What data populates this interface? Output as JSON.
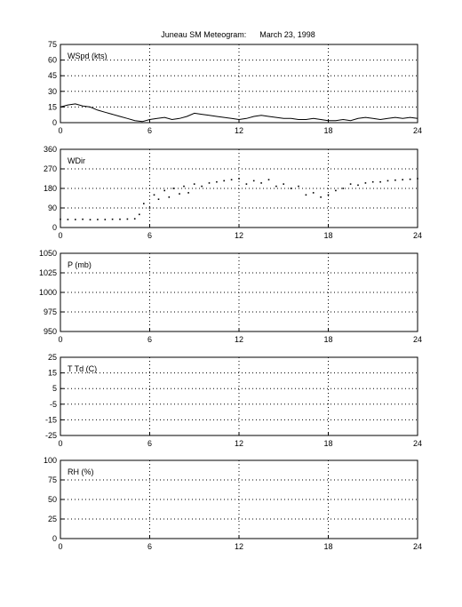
{
  "title": "Juneau SM Meteogram:      March 23, 1998",
  "chart_data": [
    {
      "type": "line",
      "label": "WSpd (kts)",
      "ylim": [
        0,
        75
      ],
      "yticks": [
        0,
        15,
        30,
        45,
        60,
        75
      ],
      "xlim": [
        0,
        24
      ],
      "xticks": [
        0,
        6,
        12,
        18,
        24
      ],
      "grid": true,
      "series": [
        {
          "x": [
            0,
            0.5,
            1,
            1.5,
            2,
            2.5,
            3,
            3.5,
            4,
            4.5,
            5,
            5.5,
            6,
            6.5,
            7,
            7.5,
            8,
            8.5,
            9,
            9.5,
            10,
            10.5,
            11,
            11.5,
            12,
            12.5,
            13,
            13.5,
            14,
            14.5,
            15,
            15.5,
            16,
            16.5,
            17,
            17.5,
            18,
            18.5,
            19,
            19.5,
            20,
            20.5,
            21,
            21.5,
            22,
            22.5,
            23,
            23.5,
            24
          ],
          "y": [
            15,
            17,
            18,
            16,
            15,
            12,
            10,
            8,
            6,
            4,
            2,
            1,
            3,
            4,
            5,
            3,
            4,
            6,
            9,
            8,
            7,
            6,
            5,
            4,
            3,
            4,
            6,
            7,
            6,
            5,
            4,
            4,
            3,
            3,
            4,
            3,
            2,
            2,
            3,
            2,
            4,
            5,
            4,
            3,
            4,
            5,
            4,
            5,
            4
          ]
        }
      ]
    },
    {
      "type": "scatter",
      "label": "WDir",
      "ylim": [
        0,
        360
      ],
      "yticks": [
        0,
        90,
        180,
        270,
        360
      ],
      "xlim": [
        0,
        24
      ],
      "xticks": [
        0,
        6,
        12,
        18,
        24
      ],
      "grid": true,
      "series": [
        {
          "x": [
            0,
            0.5,
            1,
            1.5,
            2,
            2.5,
            3,
            3.5,
            4,
            4.5,
            5,
            5.3,
            5.6,
            6,
            6.3,
            6.6,
            7,
            7.3,
            7.6,
            8,
            8.3,
            8.6,
            9,
            9.5,
            10,
            10.5,
            11,
            11.5,
            12,
            12.5,
            13,
            13.5,
            14,
            14.5,
            15,
            15.5,
            16,
            16.5,
            17,
            17.5,
            18,
            18.5,
            19,
            19.5,
            20,
            20.5,
            21,
            21.5,
            22,
            22.5,
            23,
            23.5,
            24
          ],
          "y": [
            38,
            37,
            37,
            38,
            36,
            37,
            37,
            38,
            38,
            39,
            40,
            60,
            110,
            90,
            150,
            130,
            170,
            140,
            180,
            155,
            190,
            160,
            200,
            190,
            205,
            210,
            215,
            220,
            225,
            200,
            215,
            205,
            220,
            190,
            200,
            180,
            190,
            150,
            160,
            140,
            150,
            170,
            180,
            200,
            195,
            205,
            210,
            210,
            215,
            218,
            220,
            222,
            225
          ]
        }
      ]
    },
    {
      "type": "line",
      "label": "P (mb)",
      "ylim": [
        950,
        1050
      ],
      "yticks": [
        950,
        975,
        1000,
        1025,
        1050
      ],
      "xlim": [
        0,
        24
      ],
      "xticks": [
        0,
        6,
        12,
        18,
        24
      ],
      "grid": true,
      "series": []
    },
    {
      "type": "line",
      "label": "T Td (C)",
      "ylim": [
        -25,
        25
      ],
      "yticks": [
        -25,
        -15,
        -5,
        5,
        15,
        25
      ],
      "xlim": [
        0,
        24
      ],
      "xticks": [
        0,
        6,
        12,
        18,
        24
      ],
      "grid": true,
      "series": []
    },
    {
      "type": "line",
      "label": "RH (%)",
      "ylim": [
        0,
        100
      ],
      "yticks": [
        0,
        25,
        50,
        75,
        100
      ],
      "xlim": [
        0,
        24
      ],
      "xticks": [
        0,
        6,
        12,
        18,
        24
      ],
      "grid": true,
      "series": []
    }
  ]
}
